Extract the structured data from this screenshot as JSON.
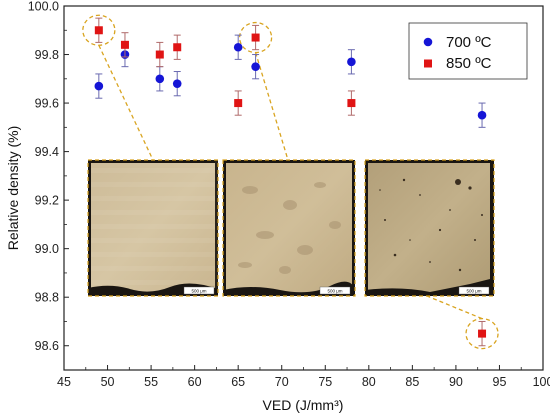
{
  "chart_data": {
    "type": "scatter",
    "xlabel": "VED (J/mm³)",
    "ylabel": "Relative density (%)",
    "xlim": [
      45,
      100
    ],
    "ylim": [
      98.5,
      100.0
    ],
    "x_ticks": [
      45,
      50,
      55,
      60,
      65,
      70,
      75,
      80,
      85,
      90,
      95,
      100
    ],
    "y_ticks": [
      "98.6",
      "98.8",
      "99.0",
      "99.2",
      "99.4",
      "99.6",
      "99.8",
      "100.0"
    ],
    "legend_position": "top-right",
    "grid": false,
    "series": [
      {
        "name": "700 ºC",
        "marker": "circle",
        "color": "#1515d6",
        "points": [
          {
            "x": 49,
            "y": 99.67,
            "err": 0.05
          },
          {
            "x": 52,
            "y": 99.8,
            "err": 0.05
          },
          {
            "x": 56,
            "y": 99.7,
            "err": 0.05
          },
          {
            "x": 58,
            "y": 99.68,
            "err": 0.05
          },
          {
            "x": 65,
            "y": 99.83,
            "err": 0.05
          },
          {
            "x": 67,
            "y": 99.75,
            "err": 0.05
          },
          {
            "x": 78,
            "y": 99.77,
            "err": 0.05
          },
          {
            "x": 93,
            "y": 99.55,
            "err": 0.05
          }
        ]
      },
      {
        "name": "850 ºC",
        "marker": "square",
        "color": "#e01414",
        "points": [
          {
            "x": 49,
            "y": 99.9,
            "err": 0.05
          },
          {
            "x": 52,
            "y": 99.84,
            "err": 0.05
          },
          {
            "x": 56,
            "y": 99.8,
            "err": 0.05
          },
          {
            "x": 58,
            "y": 99.83,
            "err": 0.05
          },
          {
            "x": 65,
            "y": 99.6,
            "err": 0.05
          },
          {
            "x": 67,
            "y": 99.87,
            "err": 0.05
          },
          {
            "x": 78,
            "y": 99.6,
            "err": 0.05
          },
          {
            "x": 93,
            "y": 98.65,
            "err": 0.05
          }
        ]
      }
    ],
    "annotations": {
      "highlight_color": "#d9a420",
      "insets": [
        {
          "name": "micrograph-1",
          "linked_point": {
            "x": 49,
            "y": 99.9
          },
          "scale_bar": "500 μm"
        },
        {
          "name": "micrograph-2",
          "linked_point": {
            "x": 67,
            "y": 99.87
          },
          "scale_bar": "500 μm"
        },
        {
          "name": "micrograph-3",
          "linked_point": {
            "x": 93,
            "y": 98.65
          },
          "scale_bar": "500 μm"
        }
      ]
    }
  }
}
